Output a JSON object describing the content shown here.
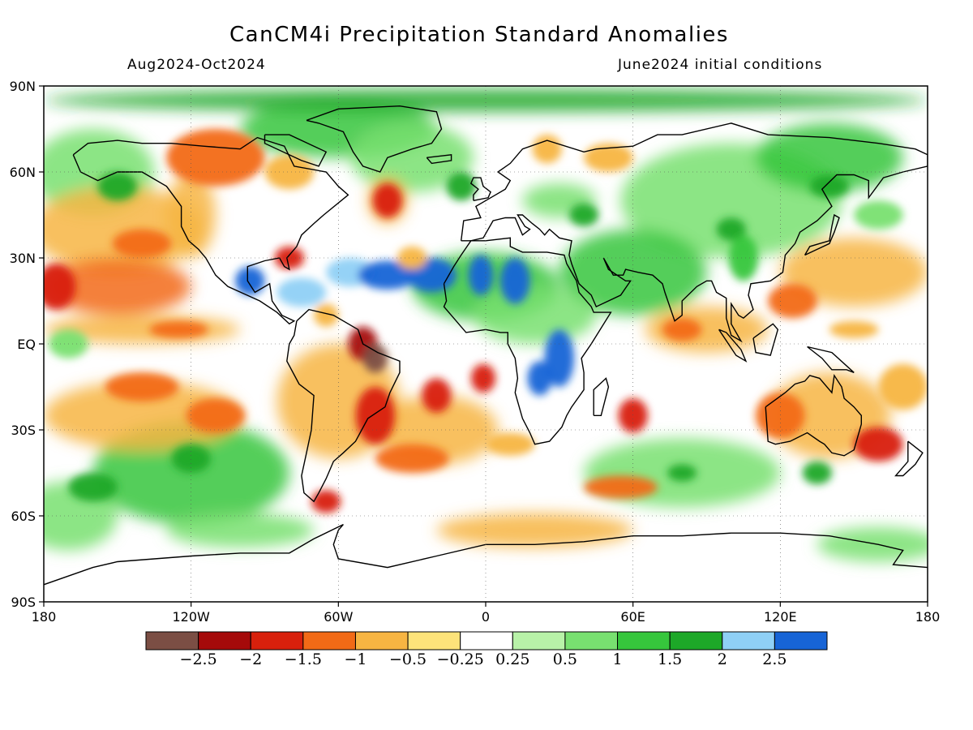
{
  "title": "CanCM4i Precipitation Standard Anomalies",
  "period": "Aug2024-Oct2024",
  "init": "June2024 initial conditions",
  "lat_labels": [
    "90N",
    "60N",
    "30N",
    "EQ",
    "30S",
    "60S",
    "90S"
  ],
  "lon_labels": [
    "180",
    "120W",
    "60W",
    "0",
    "60E",
    "120E",
    "180"
  ],
  "colorbar": {
    "colors": [
      "#7b4e44",
      "#a50a0a",
      "#d8200c",
      "#f26a16",
      "#f7b542",
      "#fde37a",
      "#ffffff",
      "#b8f2a8",
      "#78e070",
      "#36c63c",
      "#1da828",
      "#8fd0f6",
      "#1764d6"
    ],
    "labels": [
      "−2.5",
      "−2",
      "−1.5",
      "−1",
      "−0.5",
      "−0.25",
      "0.25",
      "0.5",
      "1",
      "1.5",
      "2",
      "2.5"
    ]
  },
  "icons": {
    "coastline": "coastline-outline"
  }
}
